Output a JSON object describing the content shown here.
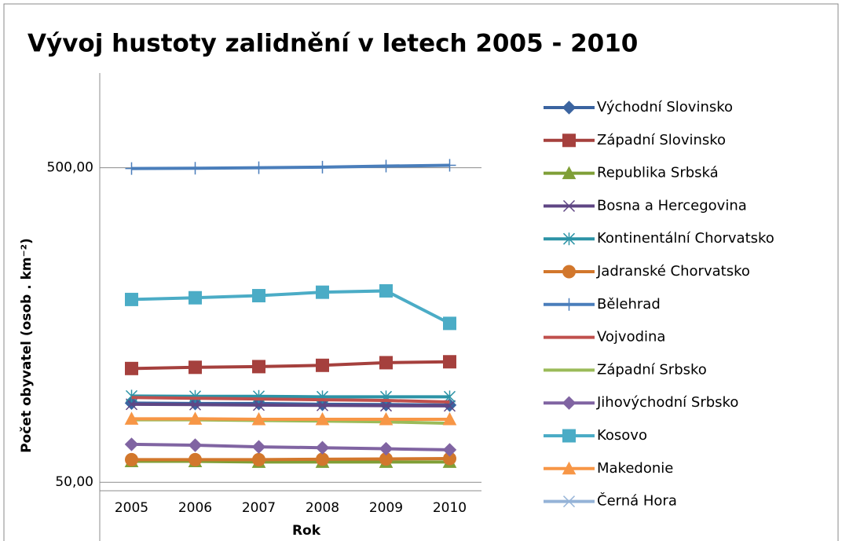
{
  "chart_data": {
    "type": "line",
    "title": "Vývoj hustoty zalidnění v letech 2005 - 2010",
    "x_label": "Rok",
    "y_label": "Počet obyvatel (osob . km⁻²)",
    "categories": [
      "2005",
      "2006",
      "2007",
      "2008",
      "2009",
      "2010"
    ],
    "log_scale": true,
    "ylim": [
      47,
      1000
    ],
    "yticks": [
      {
        "value": 50,
        "label": "50,00"
      },
      {
        "value": 500,
        "label": "500,00"
      }
    ],
    "grid": true,
    "legend": "right",
    "series": [
      {
        "name": "Východní Slovinsko",
        "color": "#3b64a0",
        "marker": "diamond",
        "values": [
          89.3,
          89,
          89,
          88.5,
          88.3,
          88
        ]
      },
      {
        "name": "Západní Slovinsko",
        "color": "#a5403d",
        "marker": "square",
        "values": [
          115,
          116,
          116.6,
          117.7,
          120,
          120.8
        ]
      },
      {
        "name": "Republika Srbská",
        "color": "#7f9f37",
        "marker": "triangle",
        "values": [
          58.3,
          58.3,
          58,
          58,
          58,
          58
        ]
      },
      {
        "name": "Bosna a Hercegovina",
        "color": "#5f4684",
        "marker": "x",
        "values": [
          88.5,
          88.3,
          88,
          87.8,
          87.6,
          87.5
        ]
      },
      {
        "name": "Kontinentální Chorvatsko",
        "color": "#2c93a6",
        "marker": "star",
        "values": [
          94,
          93.8,
          93.8,
          93.5,
          93.5,
          93.5
        ]
      },
      {
        "name": "Jadranské Chorvatsko",
        "color": "#d2772c",
        "marker": "circle",
        "values": [
          59,
          59,
          59,
          59.2,
          59.3,
          59.5
        ]
      },
      {
        "name": "Bělehrad",
        "color": "#4a7ebb",
        "marker": "plus",
        "values": [
          497,
          498,
          500,
          502,
          506,
          509
        ]
      },
      {
        "name": "Vojvodina",
        "color": "#c0504d",
        "marker": "none",
        "values": [
          93,
          92.5,
          92,
          91.5,
          91,
          90
        ]
      },
      {
        "name": "Západní Srbsko",
        "color": "#9bbb59",
        "marker": "none",
        "values": [
          79,
          79,
          78.6,
          78.3,
          77.8,
          77
        ]
      },
      {
        "name": "Jihovýchodní Srbsko",
        "color": "#8064a2",
        "marker": "diamond",
        "values": [
          66,
          65.6,
          64.8,
          64.4,
          63.9,
          63.4
        ]
      },
      {
        "name": "Kosovo",
        "color": "#4bacc6",
        "marker": "square",
        "values": [
          190.6,
          193,
          196,
          201,
          203,
          160
        ]
      },
      {
        "name": "Makedonie",
        "color": "#f79646",
        "marker": "triangle",
        "values": [
          79.6,
          79.6,
          79.3,
          79.3,
          79.3,
          79.3
        ]
      },
      {
        "name": "Černá Hora",
        "color": "#95b3d7",
        "marker": "x",
        "values": [
          null,
          null,
          null,
          null,
          null,
          null
        ]
      }
    ]
  }
}
